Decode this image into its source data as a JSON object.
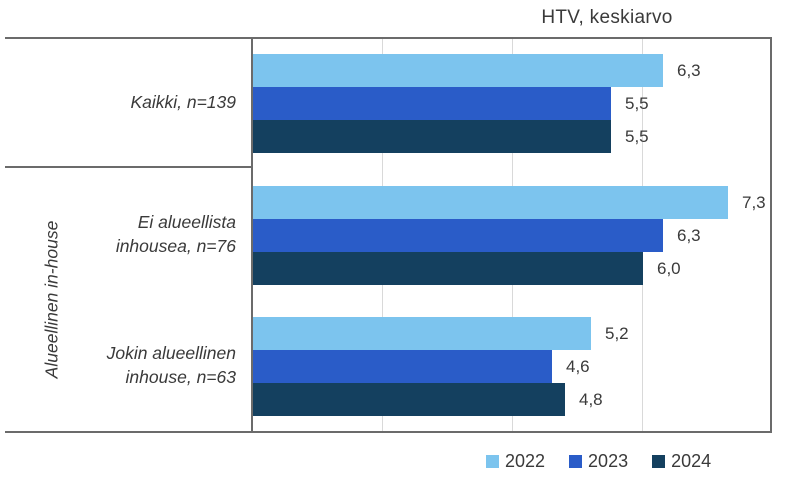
{
  "chart_data": {
    "type": "bar",
    "orientation": "horizontal",
    "title": "HTV, keskiarvo",
    "group_axis_label": "Alueellinen in-house",
    "categories": [
      "Kaikki, n=139",
      "Ei alueellista inhousea, n=76",
      "Jokin alueellinen inhouse, n=63"
    ],
    "category_lines": [
      [
        "Kaikki, n=139"
      ],
      [
        "Ei alueellista",
        "inhousea, n=76"
      ],
      [
        "Jokin alueellinen",
        "inhouse, n=63"
      ]
    ],
    "series": [
      {
        "name": "2022",
        "color": "#7cc4ee",
        "values": [
          6.3,
          7.3,
          5.2
        ]
      },
      {
        "name": "2023",
        "color": "#2a5cc8",
        "values": [
          5.5,
          6.3,
          4.6
        ]
      },
      {
        "name": "2024",
        "color": "#14405f",
        "values": [
          5.5,
          6.0,
          4.8
        ]
      }
    ],
    "value_labels": [
      [
        "6,3",
        "5,5",
        "5,5"
      ],
      [
        "7,3",
        "6,3",
        "6,0"
      ],
      [
        "5,2",
        "4,6",
        "4,8"
      ]
    ],
    "xlim": [
      0,
      8
    ],
    "gridline_values": [
      2,
      4,
      6
    ],
    "grid": "vertical-light-gray",
    "legend_position": "bottom-right",
    "decimal_separator": ",",
    "value_label_position": "outside-end"
  },
  "colors": {
    "background": "#ffffff",
    "frame": "#6b6b6b",
    "gridline": "#d9d9d9",
    "text": "#3a3a3a"
  }
}
